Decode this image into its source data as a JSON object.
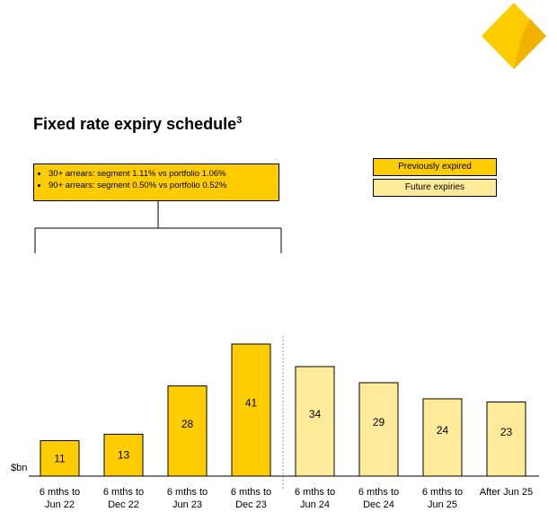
{
  "title": "Fixed rate expiry schedule",
  "title_footnote": "3",
  "callout": {
    "items": [
      "30+ arrears: segment 1.11% vs portfolio 1.06%",
      "90+ arrears: segment 0.50% vs portfolio 0.52%"
    ]
  },
  "legend": {
    "previously_expired": "Previously expired",
    "future_expiries": "Future expiries"
  },
  "colors": {
    "previously_expired": "#ffcc00",
    "future_expiries": "#ffeb99",
    "logo": "#ffcc00"
  },
  "chart_data": {
    "type": "bar",
    "ylabel": "$bn",
    "categories": [
      [
        "6 mths to",
        "Jun 22"
      ],
      [
        "6 mths to",
        "Dec 22"
      ],
      [
        "6 mths to",
        "Jun 23"
      ],
      [
        "6 mths to",
        "Dec 23"
      ],
      [
        "6 mths to",
        "Jun 24"
      ],
      [
        "6 mths to",
        "Dec 24"
      ],
      [
        "6 mths to",
        "Jun 25"
      ],
      [
        "After Jun 25"
      ]
    ],
    "values": [
      11,
      13,
      28,
      41,
      34,
      29,
      24,
      23
    ],
    "series_group": [
      "previously_expired",
      "previously_expired",
      "previously_expired",
      "previously_expired",
      "future_expiries",
      "future_expiries",
      "future_expiries",
      "future_expiries"
    ],
    "ylim": [
      0,
      44
    ],
    "grid": false
  }
}
